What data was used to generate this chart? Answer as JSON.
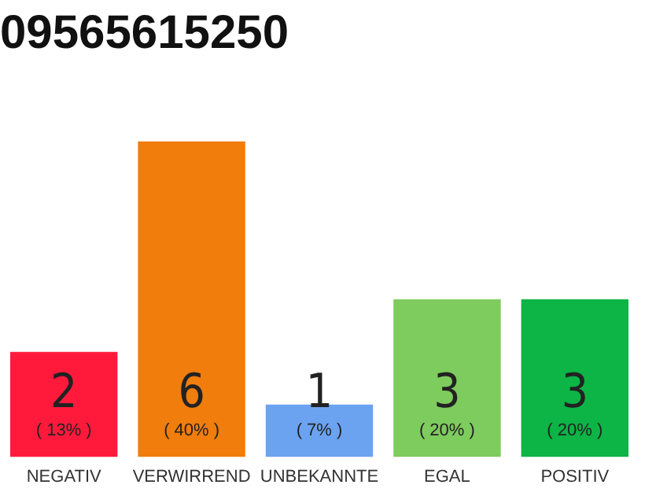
{
  "chart_data": {
    "type": "bar",
    "title": "09565615250",
    "categories": [
      "NEGATIV",
      "VERWIRREND",
      "UNBEKANNTE",
      "EGAL",
      "POSITIV"
    ],
    "values": [
      2,
      6,
      1,
      3,
      3
    ],
    "colors": [
      "#ff1a3c",
      "#f07d0c",
      "#6ba3f0",
      "#7ecb5e",
      "#0db446"
    ],
    "ylim": [
      0,
      6
    ],
    "data_labels": true,
    "annotations": [
      "( 13% )",
      "( 40% )",
      "( 7% )",
      "( 20% )",
      "( 20% )"
    ],
    "grid": false,
    "legend": false
  }
}
